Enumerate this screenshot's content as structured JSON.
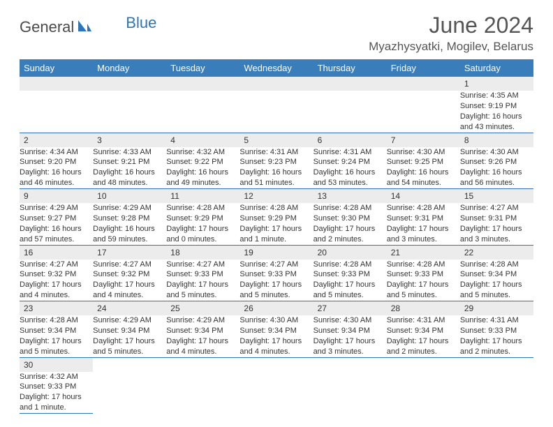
{
  "logo": {
    "general": "General",
    "blue": "Blue"
  },
  "title": "June 2024",
  "location": "Myazhysyatki, Mogilev, Belarus",
  "colors": {
    "header_bg": "#3a7dbb",
    "border": "#2e75b6",
    "numrow_bg": "#ececec",
    "text": "#333333"
  },
  "day_headers": [
    "Sunday",
    "Monday",
    "Tuesday",
    "Wednesday",
    "Thursday",
    "Friday",
    "Saturday"
  ],
  "weeks": [
    [
      null,
      null,
      null,
      null,
      null,
      null,
      {
        "n": "1",
        "sr": "Sunrise: 4:35 AM",
        "ss": "Sunset: 9:19 PM",
        "dl": "Daylight: 16 hours and 43 minutes."
      }
    ],
    [
      {
        "n": "2",
        "sr": "Sunrise: 4:34 AM",
        "ss": "Sunset: 9:20 PM",
        "dl": "Daylight: 16 hours and 46 minutes."
      },
      {
        "n": "3",
        "sr": "Sunrise: 4:33 AM",
        "ss": "Sunset: 9:21 PM",
        "dl": "Daylight: 16 hours and 48 minutes."
      },
      {
        "n": "4",
        "sr": "Sunrise: 4:32 AM",
        "ss": "Sunset: 9:22 PM",
        "dl": "Daylight: 16 hours and 49 minutes."
      },
      {
        "n": "5",
        "sr": "Sunrise: 4:31 AM",
        "ss": "Sunset: 9:23 PM",
        "dl": "Daylight: 16 hours and 51 minutes."
      },
      {
        "n": "6",
        "sr": "Sunrise: 4:31 AM",
        "ss": "Sunset: 9:24 PM",
        "dl": "Daylight: 16 hours and 53 minutes."
      },
      {
        "n": "7",
        "sr": "Sunrise: 4:30 AM",
        "ss": "Sunset: 9:25 PM",
        "dl": "Daylight: 16 hours and 54 minutes."
      },
      {
        "n": "8",
        "sr": "Sunrise: 4:30 AM",
        "ss": "Sunset: 9:26 PM",
        "dl": "Daylight: 16 hours and 56 minutes."
      }
    ],
    [
      {
        "n": "9",
        "sr": "Sunrise: 4:29 AM",
        "ss": "Sunset: 9:27 PM",
        "dl": "Daylight: 16 hours and 57 minutes."
      },
      {
        "n": "10",
        "sr": "Sunrise: 4:29 AM",
        "ss": "Sunset: 9:28 PM",
        "dl": "Daylight: 16 hours and 59 minutes."
      },
      {
        "n": "11",
        "sr": "Sunrise: 4:28 AM",
        "ss": "Sunset: 9:29 PM",
        "dl": "Daylight: 17 hours and 0 minutes."
      },
      {
        "n": "12",
        "sr": "Sunrise: 4:28 AM",
        "ss": "Sunset: 9:29 PM",
        "dl": "Daylight: 17 hours and 1 minute."
      },
      {
        "n": "13",
        "sr": "Sunrise: 4:28 AM",
        "ss": "Sunset: 9:30 PM",
        "dl": "Daylight: 17 hours and 2 minutes."
      },
      {
        "n": "14",
        "sr": "Sunrise: 4:28 AM",
        "ss": "Sunset: 9:31 PM",
        "dl": "Daylight: 17 hours and 3 minutes."
      },
      {
        "n": "15",
        "sr": "Sunrise: 4:27 AM",
        "ss": "Sunset: 9:31 PM",
        "dl": "Daylight: 17 hours and 3 minutes."
      }
    ],
    [
      {
        "n": "16",
        "sr": "Sunrise: 4:27 AM",
        "ss": "Sunset: 9:32 PM",
        "dl": "Daylight: 17 hours and 4 minutes."
      },
      {
        "n": "17",
        "sr": "Sunrise: 4:27 AM",
        "ss": "Sunset: 9:32 PM",
        "dl": "Daylight: 17 hours and 4 minutes."
      },
      {
        "n": "18",
        "sr": "Sunrise: 4:27 AM",
        "ss": "Sunset: 9:33 PM",
        "dl": "Daylight: 17 hours and 5 minutes."
      },
      {
        "n": "19",
        "sr": "Sunrise: 4:27 AM",
        "ss": "Sunset: 9:33 PM",
        "dl": "Daylight: 17 hours and 5 minutes."
      },
      {
        "n": "20",
        "sr": "Sunrise: 4:28 AM",
        "ss": "Sunset: 9:33 PM",
        "dl": "Daylight: 17 hours and 5 minutes."
      },
      {
        "n": "21",
        "sr": "Sunrise: 4:28 AM",
        "ss": "Sunset: 9:33 PM",
        "dl": "Daylight: 17 hours and 5 minutes."
      },
      {
        "n": "22",
        "sr": "Sunrise: 4:28 AM",
        "ss": "Sunset: 9:34 PM",
        "dl": "Daylight: 17 hours and 5 minutes."
      }
    ],
    [
      {
        "n": "23",
        "sr": "Sunrise: 4:28 AM",
        "ss": "Sunset: 9:34 PM",
        "dl": "Daylight: 17 hours and 5 minutes."
      },
      {
        "n": "24",
        "sr": "Sunrise: 4:29 AM",
        "ss": "Sunset: 9:34 PM",
        "dl": "Daylight: 17 hours and 5 minutes."
      },
      {
        "n": "25",
        "sr": "Sunrise: 4:29 AM",
        "ss": "Sunset: 9:34 PM",
        "dl": "Daylight: 17 hours and 4 minutes."
      },
      {
        "n": "26",
        "sr": "Sunrise: 4:30 AM",
        "ss": "Sunset: 9:34 PM",
        "dl": "Daylight: 17 hours and 4 minutes."
      },
      {
        "n": "27",
        "sr": "Sunrise: 4:30 AM",
        "ss": "Sunset: 9:34 PM",
        "dl": "Daylight: 17 hours and 3 minutes."
      },
      {
        "n": "28",
        "sr": "Sunrise: 4:31 AM",
        "ss": "Sunset: 9:34 PM",
        "dl": "Daylight: 17 hours and 2 minutes."
      },
      {
        "n": "29",
        "sr": "Sunrise: 4:31 AM",
        "ss": "Sunset: 9:33 PM",
        "dl": "Daylight: 17 hours and 2 minutes."
      }
    ],
    [
      {
        "n": "30",
        "sr": "Sunrise: 4:32 AM",
        "ss": "Sunset: 9:33 PM",
        "dl": "Daylight: 17 hours and 1 minute."
      },
      null,
      null,
      null,
      null,
      null,
      null
    ]
  ]
}
